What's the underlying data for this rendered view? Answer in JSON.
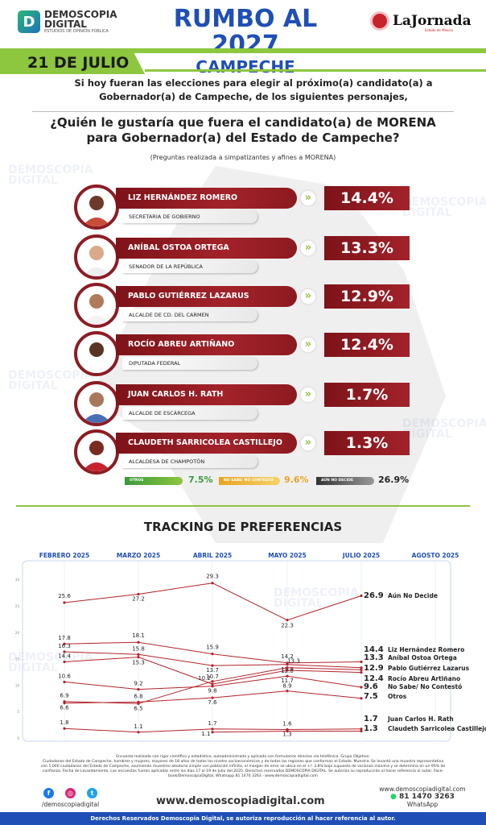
{
  "header": {
    "logo_name": "DEMOSCOPIA DIGITAL",
    "logo_tagline": "ESTUDIOS DE OPINIÓN PÚBLICA",
    "title_line1": "RUMBO AL 2027",
    "title_line2": "CAMPECHE",
    "partner_name": "LaJornada",
    "partner_sub": "Estado de México",
    "date": "21 DE JULIO"
  },
  "intro": {
    "line1": "Si hoy fueran las elecciones para elegir al próximo(a) candidato(a) a",
    "line2": "Gobernador(a) de Campeche, de los siguientes personajes,",
    "question1": "¿Quién le gustaría que fuera el candidato(a) de MORENA",
    "question2": "para Gobernador(a) del Estado de Campeche?",
    "note": "(Preguntas realizada a simpatizantes y afines a MORENA)"
  },
  "candidates": [
    {
      "name": "LIZ HERNÁNDEZ ROMERO",
      "role": "SECRETARIA DE GOBIERNO",
      "pct": "14.4%"
    },
    {
      "name": "ANÍBAL OSTOA ORTEGA",
      "role": "SENADOR DE LA REPÚBLICA",
      "pct": "13.3%"
    },
    {
      "name": "PABLO GUTIÉRREZ LAZARUS",
      "role": "ALCALDE DE CD. DEL CARMEN",
      "pct": "12.9%"
    },
    {
      "name": "ROCÍO ABREU ARTIÑANO",
      "role": "DIPUTADA FEDERAL",
      "pct": "12.4%"
    },
    {
      "name": "JUAN CARLOS H. RATH",
      "role": "ALCALDE DE ESCÁRCEGA",
      "pct": "1.7%"
    },
    {
      "name": "CLAUDETH SARRICOLEA CASTILLEJO",
      "role": "ALCALDESA DE CHAMPOTÓN",
      "pct": "1.3%"
    }
  ],
  "summary": {
    "otros_label": "OTROS",
    "otros_val": "7.5%",
    "nosabe_label": "NO SABE/ NO CONTESTÓ",
    "nosabe_val": "9.6%",
    "aun_label": "AÚN NO DECIDE",
    "aun_val": "26.9%"
  },
  "tracking_title": "TRACKING DE PREFERENCIAS",
  "chart_data": {
    "type": "line",
    "categories": [
      "FEBRERO 2025",
      "MARZO 2025",
      "ABRIL 2025",
      "MAYO 2025",
      "JULIO 2025",
      "AGOSTO 2025"
    ],
    "y_ticks": [
      "0",
      "5",
      "10",
      "15",
      "20",
      "25",
      "30"
    ],
    "ylim": [
      0,
      32
    ],
    "series": [
      {
        "name": "Aún No Decide",
        "points": [
          [
            0,
            25.6
          ],
          [
            1,
            27.2
          ],
          [
            2,
            29.3
          ],
          [
            3,
            22.3
          ],
          [
            4,
            26.9
          ]
        ]
      },
      {
        "name": "Liz Hernández Romero",
        "points": [
          [
            0,
            17.8
          ],
          [
            1,
            18.1
          ],
          [
            2,
            15.9
          ],
          [
            3,
            14.2
          ],
          [
            4,
            14.4
          ]
        ]
      },
      {
        "name": "Aníbal Ostoa Ortega",
        "points": [
          [
            0,
            16.3
          ],
          [
            1,
            15.8
          ],
          [
            2,
            13.7
          ],
          [
            3,
            13.9
          ],
          [
            4,
            13.3
          ]
        ]
      },
      {
        "name": "Pablo Gutiérrez Lazarus",
        "points": [
          [
            0,
            6.9
          ],
          [
            1,
            6.5
          ],
          [
            2,
            10.7
          ],
          [
            3,
            13.3
          ],
          [
            4,
            12.9
          ]
        ]
      },
      {
        "name": "Rocío Abreu Artiñano",
        "points": [
          [
            0,
            14.4
          ],
          [
            1,
            15.3
          ],
          [
            2,
            10.2
          ],
          [
            3,
            12.8
          ],
          [
            4,
            12.4
          ]
        ]
      },
      {
        "name": "No Sabe/ No Contestó",
        "points": [
          [
            0,
            10.6
          ],
          [
            1,
            9.2
          ],
          [
            2,
            9.8
          ],
          [
            3,
            11.7
          ],
          [
            4,
            9.6
          ]
        ]
      },
      {
        "name": "Otros",
        "points": [
          [
            0,
            6.6
          ],
          [
            1,
            6.8
          ],
          [
            2,
            7.6
          ],
          [
            3,
            8.9
          ],
          [
            4,
            7.5
          ]
        ]
      },
      {
        "name": "Juan Carlos H. Rath",
        "points": [
          [
            0,
            1.8
          ],
          [
            1,
            1.1
          ],
          [
            2,
            1.7
          ],
          [
            3,
            1.6
          ],
          [
            4,
            1.7
          ]
        ]
      },
      {
        "name": "Claudeth Sarricolea Castillejo",
        "points": [
          [
            2,
            1.1
          ],
          [
            3,
            1.3
          ],
          [
            4,
            1.3
          ]
        ]
      }
    ],
    "line_color": "#b3232b"
  },
  "footnote": {
    "line1": "Encuesta realizada con rigor científico y estadístico, autoadministrada y aplicada con formularios directos vía telefónica. Grupo Objetivo:",
    "line2": "Ciudadanos del Estado de Campeche, hombres y mujeres, mayores de 18 años de todos los niveles socioeconómicos y de todas las regiones que conforman el Estado. Muestra: Se levantó una muestra representativa",
    "line3": "con 1,000 ciudadanos del Estado de Campeche, asumiendo muestreo aleatorio simple con población infinita, el margen de error se ubica en el +/- 3.8% bajo supuesto de varianza máxima y se determina en un 95% de",
    "line4": "confianza. Fecha de Levantamiento. Las encuestas fueron aplicadas entre los días 17 al 19 de Julio del 2025. Derechos reservados DEMOSCOPIA DIGITAL. Se autoriza su reproducción al hacer referencia al autor, Face-",
    "line5": "book/DemoscopiaDigital, Whatsapp 81 1470 3263 - www.demoscopiadigital.com"
  },
  "footer": {
    "handle": "/demoscopiadigital",
    "website": "www.demoscopiadigital.com",
    "contact_site": "www.demoscopiadigital.com",
    "phone": "81 1470 3263",
    "whatsapp": "WhatsApp",
    "rights": "Derechos Reservados Demoscopia Digital, se autoriza reproducción al hacer referencia al autor."
  }
}
